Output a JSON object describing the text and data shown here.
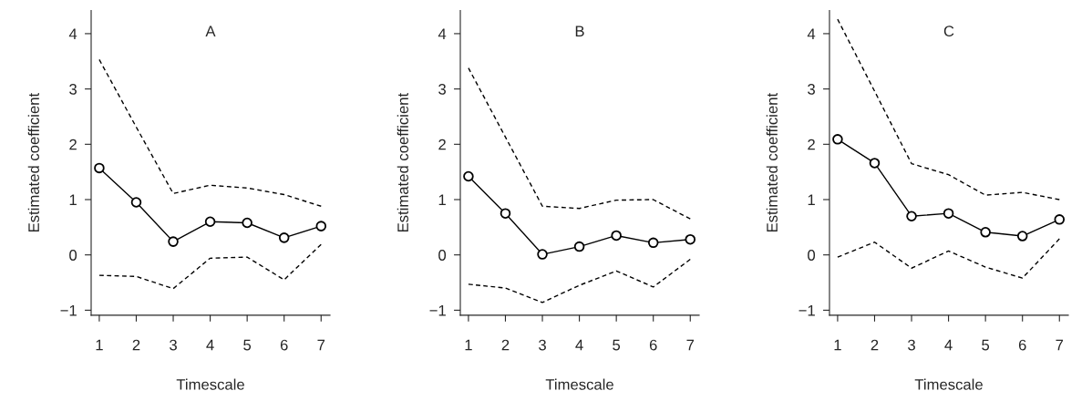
{
  "chart_data": [
    {
      "type": "line",
      "title": "A",
      "xlabel": "Timescale",
      "ylabel": "Estimated coefficient",
      "x": [
        1,
        2,
        3,
        4,
        5,
        6,
        7
      ],
      "xlim": [
        0.78,
        7.24
      ],
      "xticks": [
        1,
        2,
        3,
        4,
        5,
        6,
        7
      ],
      "ylim": [
        -1.09,
        4.42
      ],
      "yticks": [
        -1,
        0,
        1,
        2,
        3,
        4
      ],
      "series": [
        {
          "color": "#000000",
          "marker": "circle",
          "line_style": "solid",
          "values": [
            1.57,
            0.95,
            0.24,
            0.6,
            0.58,
            0.31,
            0.52
          ]
        },
        {
          "color": "#000000",
          "marker": "none",
          "line_style": "dashed",
          "values": [
            3.53,
            2.31,
            1.11,
            1.26,
            1.21,
            1.09,
            0.88
          ]
        },
        {
          "color": "#000000",
          "marker": "none",
          "line_style": "dashed",
          "values": [
            -0.37,
            -0.39,
            -0.61,
            -0.06,
            -0.04,
            -0.45,
            0.19
          ]
        }
      ]
    },
    {
      "type": "line",
      "title": "B",
      "xlabel": "Timescale",
      "ylabel": "Estimated coefficient",
      "x": [
        1,
        2,
        3,
        4,
        5,
        6,
        7
      ],
      "xlim": [
        0.78,
        7.24
      ],
      "xticks": [
        1,
        2,
        3,
        4,
        5,
        6,
        7
      ],
      "ylim": [
        -1.09,
        4.42
      ],
      "yticks": [
        -1,
        0,
        1,
        2,
        3,
        4
      ],
      "series": [
        {
          "color": "#000000",
          "marker": "circle",
          "line_style": "solid",
          "values": [
            1.42,
            0.75,
            0.01,
            0.15,
            0.35,
            0.22,
            0.28
          ]
        },
        {
          "color": "#000000",
          "marker": "none",
          "line_style": "dashed",
          "values": [
            3.38,
            2.13,
            0.88,
            0.84,
            0.99,
            1.0,
            0.65
          ]
        },
        {
          "color": "#000000",
          "marker": "none",
          "line_style": "dashed",
          "values": [
            -0.53,
            -0.6,
            -0.86,
            -0.55,
            -0.29,
            -0.58,
            -0.08
          ]
        }
      ]
    },
    {
      "type": "line",
      "title": "C",
      "xlabel": "Timescale",
      "ylabel": "Estimated coefficient",
      "x": [
        1,
        2,
        3,
        4,
        5,
        6,
        7
      ],
      "xlim": [
        0.78,
        7.24
      ],
      "xticks": [
        1,
        2,
        3,
        4,
        5,
        6,
        7
      ],
      "ylim": [
        -1.09,
        4.42
      ],
      "yticks": [
        -1,
        0,
        1,
        2,
        3,
        4
      ],
      "series": [
        {
          "color": "#000000",
          "marker": "circle",
          "line_style": "solid",
          "values": [
            2.09,
            1.66,
            0.7,
            0.75,
            0.41,
            0.34,
            0.64
          ]
        },
        {
          "color": "#000000",
          "marker": "none",
          "line_style": "dashed",
          "values": [
            4.26,
            2.96,
            1.65,
            1.45,
            1.08,
            1.13,
            1.0
          ]
        },
        {
          "color": "#000000",
          "marker": "none",
          "line_style": "dashed",
          "values": [
            -0.04,
            0.23,
            -0.24,
            0.07,
            -0.22,
            -0.42,
            0.29
          ]
        }
      ]
    }
  ]
}
